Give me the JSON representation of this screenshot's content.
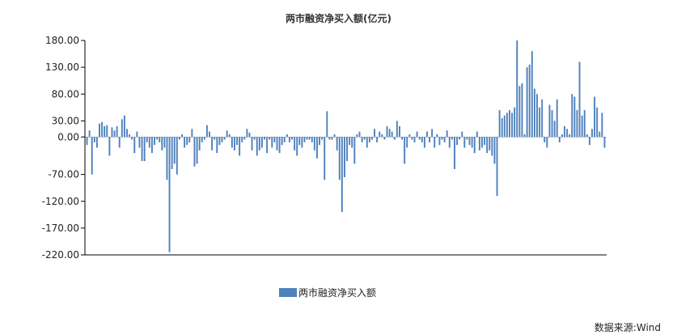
{
  "chart_data": {
    "type": "bar",
    "title": "两市融资净买入额(亿元)",
    "legend": "两市融资净买入额",
    "source": "数据来源:Wind",
    "ylim": [
      -220,
      180
    ],
    "yticks": [
      "180.00",
      "130.00",
      "80.00",
      "30.00",
      "0.00",
      "-70.00",
      "-120.00",
      "-170.00",
      "-220.00"
    ],
    "ytick_values": [
      180,
      130,
      80,
      30,
      0,
      -70,
      -120,
      -170,
      -220
    ],
    "color": "#4f81bd",
    "series": [
      {
        "values": [
          -15,
          12,
          -70,
          -10,
          -20,
          25,
          28,
          20,
          22,
          -35,
          18,
          12,
          20,
          -20,
          33,
          40,
          15,
          5,
          -5,
          -30,
          10,
          -20,
          -45,
          -45,
          -10,
          -20,
          -30,
          -15,
          -5,
          -10,
          -25,
          -20,
          -80,
          -215,
          -60,
          -50,
          -70,
          -5,
          5,
          -20,
          -15,
          -10,
          15,
          -55,
          -50,
          -25,
          -10,
          -5,
          22,
          10,
          -25,
          -5,
          -30,
          -15,
          -10,
          -5,
          12,
          5,
          -20,
          -25,
          -15,
          -35,
          -10,
          -5,
          15,
          8,
          -25,
          -5,
          -35,
          -25,
          -20,
          -5,
          -30,
          -5,
          -20,
          -10,
          -25,
          -30,
          -15,
          -10,
          5,
          -10,
          -5,
          -25,
          -35,
          -15,
          -20,
          -10,
          -5,
          -5,
          -10,
          -25,
          -40,
          -15,
          -5,
          -80,
          48,
          -5,
          -5,
          5,
          -25,
          -80,
          -140,
          -75,
          -45,
          -15,
          -20,
          -50,
          5,
          10,
          -10,
          -5,
          -20,
          -10,
          -5,
          15,
          -10,
          10,
          5,
          -5,
          20,
          15,
          10,
          -5,
          30,
          20,
          -5,
          -50,
          -20,
          5,
          -5,
          -10,
          10,
          -5,
          -10,
          -20,
          10,
          -10,
          15,
          -20,
          5,
          -15,
          -5,
          -10,
          12,
          -20,
          -5,
          -60,
          -15,
          -5,
          10,
          -20,
          -5,
          -15,
          -20,
          -30,
          10,
          -25,
          -20,
          -15,
          -30,
          -25,
          -35,
          -50,
          -110,
          50,
          35,
          40,
          45,
          50,
          45,
          55,
          180,
          95,
          100,
          5,
          130,
          135,
          160,
          90,
          80,
          55,
          70,
          -10,
          -20,
          60,
          50,
          30,
          70,
          -10,
          5,
          20,
          15,
          5,
          80,
          75,
          50,
          140,
          40,
          50,
          5,
          -15,
          15,
          75,
          55,
          10,
          45,
          -20
        ]
      }
    ]
  }
}
